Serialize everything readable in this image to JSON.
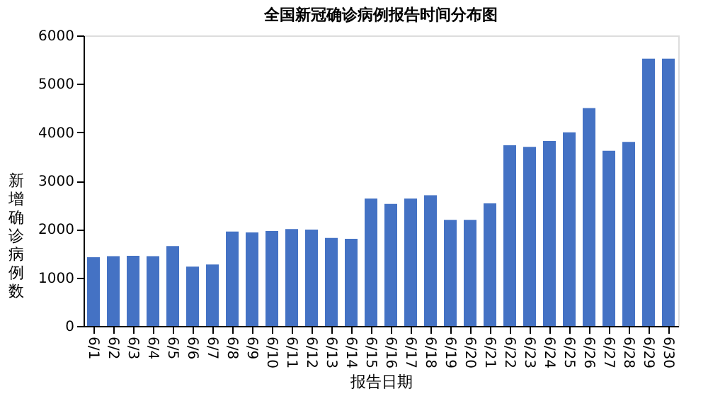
{
  "chart_data": {
    "type": "bar",
    "title": "全国新冠确诊病例报告时间分布图",
    "xlabel": "报告日期",
    "ylabel": "新增确诊病例数",
    "categories": [
      "6/1",
      "6/2",
      "6/3",
      "6/4",
      "6/5",
      "6/6",
      "6/7",
      "6/8",
      "6/9",
      "6/10",
      "6/11",
      "6/12",
      "6/13",
      "6/14",
      "6/15",
      "6/16",
      "6/17",
      "6/18",
      "6/19",
      "6/20",
      "6/21",
      "6/22",
      "6/23",
      "6/24",
      "6/25",
      "6/26",
      "6/27",
      "6/28",
      "6/29",
      "6/30"
    ],
    "values": [
      1420,
      1440,
      1450,
      1440,
      1650,
      1225,
      1270,
      1950,
      1930,
      1960,
      2000,
      1990,
      1820,
      1800,
      2630,
      2520,
      2630,
      2700,
      2190,
      2190,
      2530,
      3730,
      3700,
      3820,
      4000,
      4500,
      3620,
      3800,
      5520,
      5520
    ],
    "color": "#4472c4",
    "ylim": [
      0,
      6000
    ],
    "yticks": [
      0,
      1000,
      2000,
      3000,
      4000,
      5000,
      6000
    ],
    "grid": false
  }
}
